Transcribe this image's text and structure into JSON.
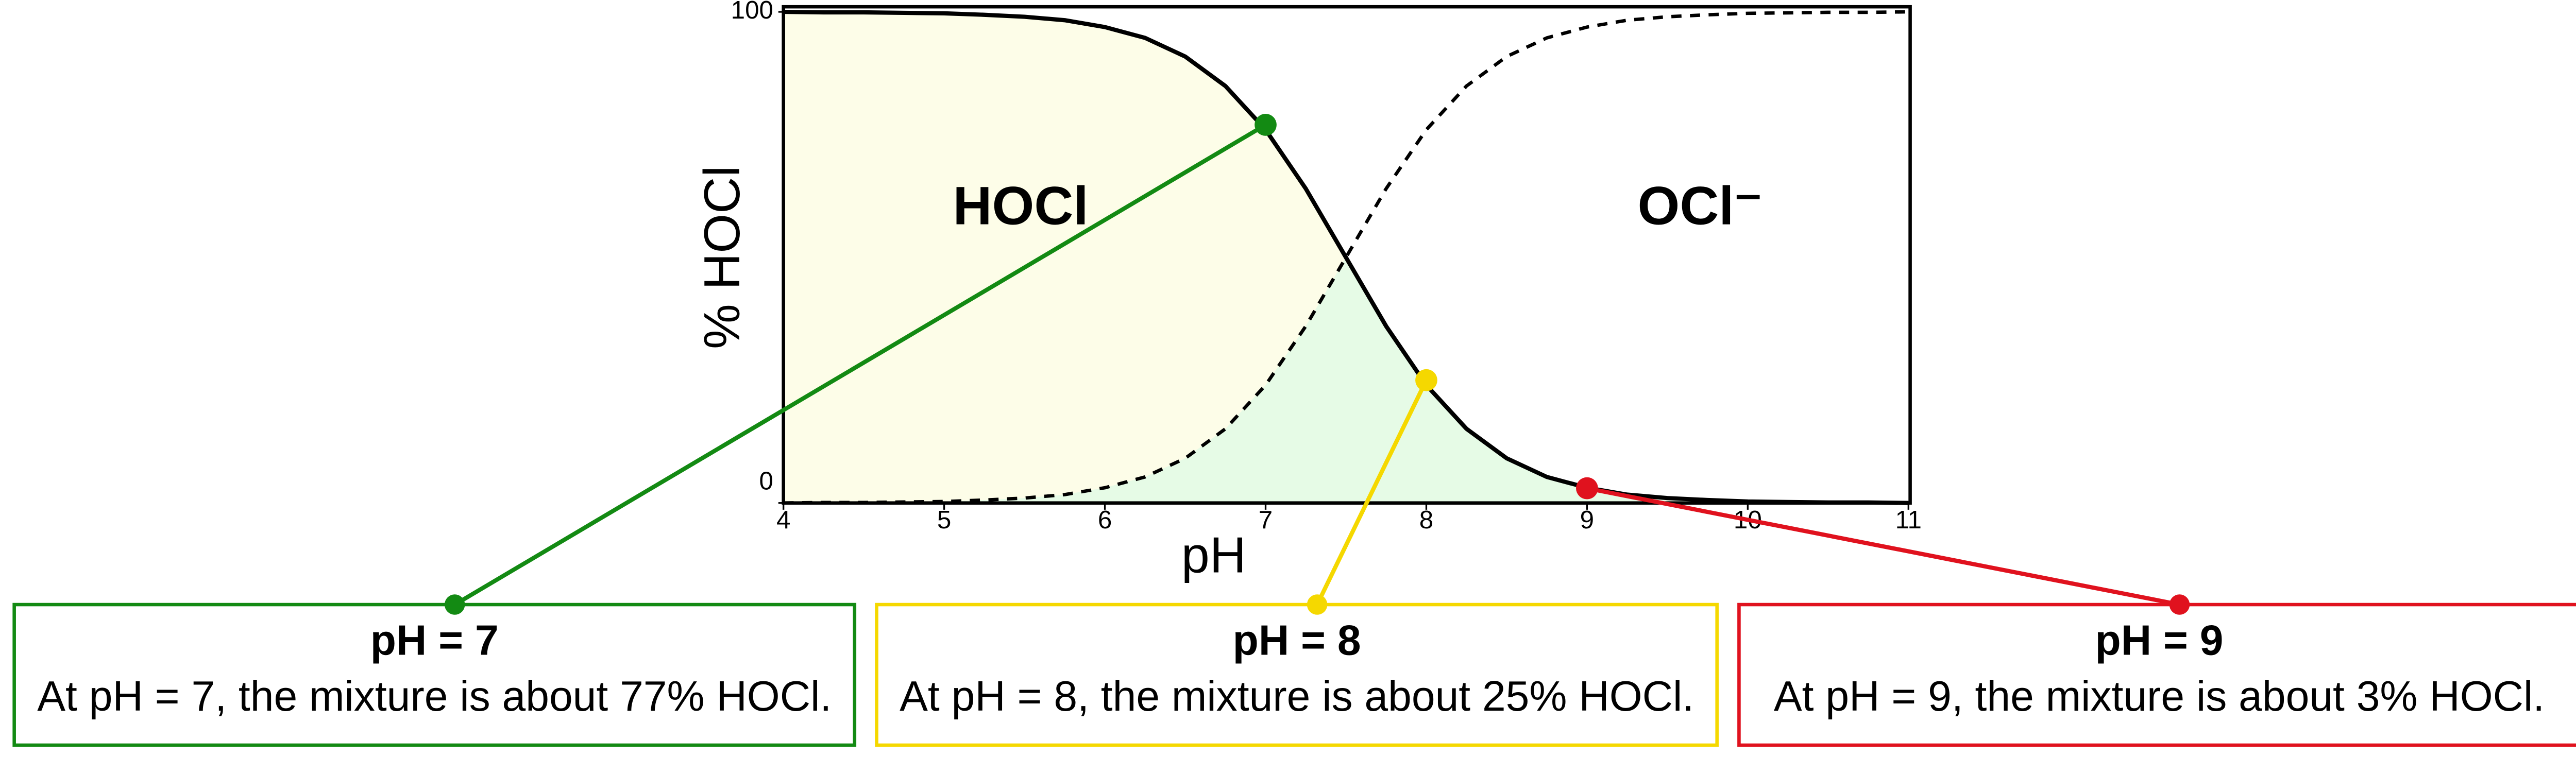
{
  "chart_data": {
    "type": "line",
    "x": [
      4,
      4.25,
      4.5,
      4.75,
      5,
      5.25,
      5.5,
      5.75,
      6,
      6.25,
      6.5,
      6.75,
      7,
      7.25,
      7.5,
      7.75,
      8,
      8.25,
      8.5,
      8.75,
      9,
      9.25,
      9.5,
      9.75,
      10,
      10.25,
      10.5,
      10.75,
      11
    ],
    "series": [
      {
        "name": "HOCl",
        "color": "#000000",
        "dash": false,
        "values": [
          100.0,
          99.9,
          99.9,
          99.8,
          99.7,
          99.4,
          99.0,
          98.3,
          96.9,
          94.7,
          90.9,
          84.9,
          76.0,
          64.0,
          50.0,
          36.0,
          24.0,
          15.1,
          9.1,
          5.3,
          3.1,
          1.7,
          1.0,
          0.6,
          0.3,
          0.2,
          0.1,
          0.1,
          0.0
        ]
      },
      {
        "name": "OCl⁻",
        "color": "#000000",
        "dash": true,
        "values": [
          0.0,
          0.1,
          0.1,
          0.2,
          0.3,
          0.6,
          1.0,
          1.7,
          3.1,
          5.3,
          9.1,
          15.1,
          24.0,
          36.0,
          50.0,
          64.0,
          76.0,
          84.9,
          90.9,
          94.7,
          96.9,
          98.3,
          99.0,
          99.4,
          99.7,
          99.8,
          99.9,
          99.9,
          100.0
        ]
      }
    ],
    "xlabel": "pH",
    "ylabel": "% HOCl",
    "xlim": [
      4,
      11
    ],
    "ylim": [
      0,
      100
    ],
    "xticks": [
      4,
      5,
      6,
      7,
      8,
      9,
      10,
      11
    ],
    "yticks": [
      0,
      100
    ],
    "fills": {
      "hocl": "#fdfde8",
      "overlap": "#e6fbe6"
    },
    "annotations": [
      {
        "x": 7,
        "value": 77,
        "color": "#138a13",
        "title": "pH = 7",
        "text": "At pH = 7, the mixture is about 77% HOCl."
      },
      {
        "x": 8,
        "value": 25,
        "color": "#f5d800",
        "title": "pH = 8",
        "text": "At pH = 8, the mixture is about 25% HOCl."
      },
      {
        "x": 9,
        "value": 3,
        "color": "#e0121e",
        "title": "pH = 9",
        "text": "At pH = 9, the mixture is about 3% HOCl."
      }
    ]
  }
}
